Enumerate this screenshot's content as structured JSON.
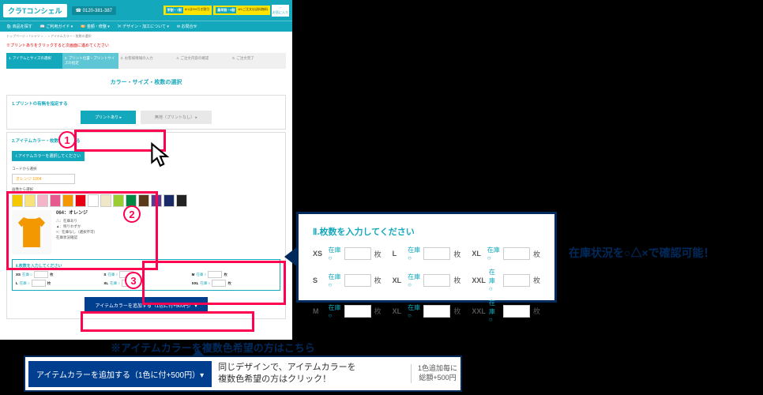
{
  "header": {
    "logo": "クラTコンシェル",
    "tel": "☎ 0120-381-387",
    "badge1_l": "学割・7割",
    "badge1_r": "8/1は3%引き割引",
    "badge2_l": "最早割・9割",
    "badge2_r": "8/1ご注文は送料無料",
    "fav": "お気に入り"
  },
  "gnav": [
    "🛍 商品を探す",
    "📖 ご利用ガイド ▾",
    "💴 金額・修整 ▾",
    "✂ デザイン・加工について ▾",
    "✉ お問合せ"
  ],
  "crumb": "トップページ > Tシャツ > … > アイテムカラー・枚数の選択",
  "note": "※プリントありをクリックすると次画面に進めてください",
  "steps": [
    "1. アイテムとサイズの選択",
    "2. プリント位置・プリントサイズの指定",
    "3. お客様情報の入力",
    "4. ご注文内容の確認",
    "5. ご注文完了"
  ],
  "secTitle": "カラー・サイズ・枚数の選択",
  "box1": {
    "h": "1.プリントの有無を指定する",
    "btnP": "プリントあり ▸",
    "btnO": "無地（プリントなし） ▸"
  },
  "box2": {
    "h": "2.アイテムカラー・枚数を入力する",
    "sub1": "Ⅰ.アイテムカラーを選択してください",
    "codeLbl": "コードから選択",
    "codeVal": "オレンジ 1004",
    "visLbl": "画像から選択",
    "swatches": [
      "#f5c900",
      "#f7e27b",
      "#f5b5c8",
      "#e85a8f",
      "#f39800",
      "#e60012",
      "#ffffff",
      "#f0e6c8",
      "#9acd32",
      "#008842",
      "#5a3a1a",
      "#5c3b8f",
      "#1a2a66",
      "#222222"
    ],
    "prod": {
      "name": "064：オレンジ",
      "m1": "△：在庫あり",
      "m2": "▲：残りわずか",
      "m3": "×：在庫なし（選択不可）",
      "m4": "在庫状況確認"
    },
    "qtyH": "Ⅱ.枚数を入力してください",
    "sizes": [
      "XS",
      "S",
      "M",
      "L",
      "XL",
      "XXL"
    ],
    "stk": "在庫 ○",
    "unit": "枚"
  },
  "addBtn": "アイテムカラーを追加する（1色に付+500円） ▾",
  "callout1": {
    "h": "Ⅱ.枚数を入力してください",
    "sizes": [
      "XS",
      "L",
      "XL",
      "S",
      "XL",
      "XXL",
      "M",
      "XL",
      "XXL"
    ]
  },
  "sideTxt": "在庫状況を○△×で確認可能！",
  "footNote": "※アイテムカラーを複数色希望の方はこちら",
  "callout2": {
    "btn": "アイテムカラーを追加する（1色に付+500円）▾",
    "txt": "同じデザインで、アイテムカラーを\n複数色希望の方はクリック！",
    "p1": "1色追加毎に",
    "p2": "総額+500円"
  }
}
